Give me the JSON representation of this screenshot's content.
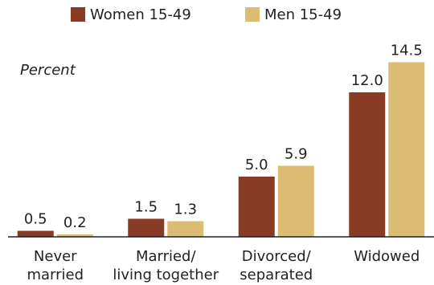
{
  "chart_data": {
    "type": "bar",
    "y_label": "Percent",
    "categories": [
      [
        "Never",
        "married"
      ],
      [
        "Married/",
        "living together"
      ],
      [
        "Divorced/",
        "separated"
      ],
      [
        "Widowed"
      ]
    ],
    "series": [
      {
        "name": "Women 15-49",
        "color": "#8a3b26",
        "values": [
          0.5,
          1.5,
          5.0,
          12.0
        ],
        "value_labels": [
          "0.5",
          "1.5",
          "5.0",
          "12.0"
        ]
      },
      {
        "name": "Men 15-49",
        "color": "#dcbb72",
        "values": [
          0.2,
          1.3,
          5.9,
          14.5
        ],
        "value_labels": [
          "0.2",
          "1.3",
          "5.9",
          "14.5"
        ]
      }
    ],
    "ylim": [
      0,
      15
    ]
  }
}
